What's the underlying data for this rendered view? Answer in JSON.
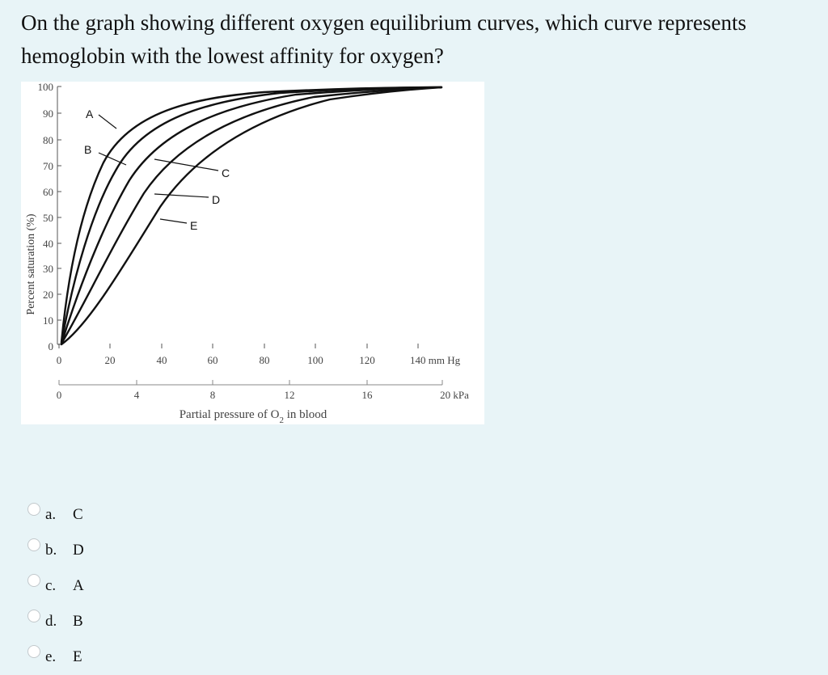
{
  "question": {
    "text": "On the graph showing different oxygen equilibrium curves, which curve represents hemoglobin with the lowest affinity for oxygen?"
  },
  "figure": {
    "ylabel": "Percent saturation (%)",
    "xlabel_prefix": "Partial pressure of O",
    "xlabel_sub": "2",
    "xlabel_suffix": " in blood",
    "y_ticks": [
      "100",
      "90",
      "80",
      "70",
      "60",
      "50",
      "40",
      "30",
      "20",
      "10",
      "0"
    ],
    "x_ticks_mmhg": [
      "0",
      "20",
      "40",
      "60",
      "80",
      "100",
      "120",
      "140 mm Hg"
    ],
    "x_ticks_kpa": [
      "0",
      "4",
      "8",
      "12",
      "16",
      "20 kPa"
    ],
    "curve_labels": [
      "A",
      "B",
      "C",
      "D",
      "E"
    ]
  },
  "options": [
    {
      "letter": "a.",
      "text": "C"
    },
    {
      "letter": "b.",
      "text": "D"
    },
    {
      "letter": "c.",
      "text": "A"
    },
    {
      "letter": "d.",
      "text": "B"
    },
    {
      "letter": "e.",
      "text": "E"
    }
  ]
}
